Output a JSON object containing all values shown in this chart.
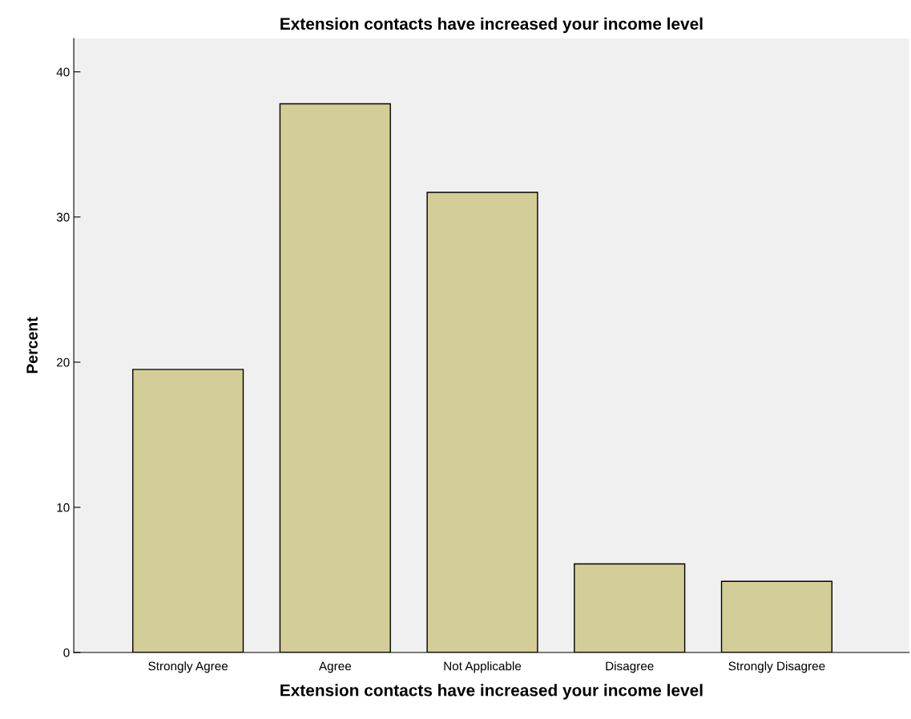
{
  "chart_data": {
    "type": "bar",
    "title": "Extension contacts have increased your income level",
    "xlabel": "Extension contacts have increased your income level",
    "ylabel": "Percent",
    "categories": [
      "Strongly Agree",
      "Agree",
      "Not Applicable",
      "Disagree",
      "Strongly Disagree"
    ],
    "values": [
      19.5,
      37.8,
      31.7,
      6.1,
      4.9
    ],
    "color": "#d3ce97",
    "ylim": [
      0,
      42.3
    ],
    "yticks": [
      0,
      10,
      20,
      30,
      40
    ],
    "grid": false,
    "legend": false
  }
}
